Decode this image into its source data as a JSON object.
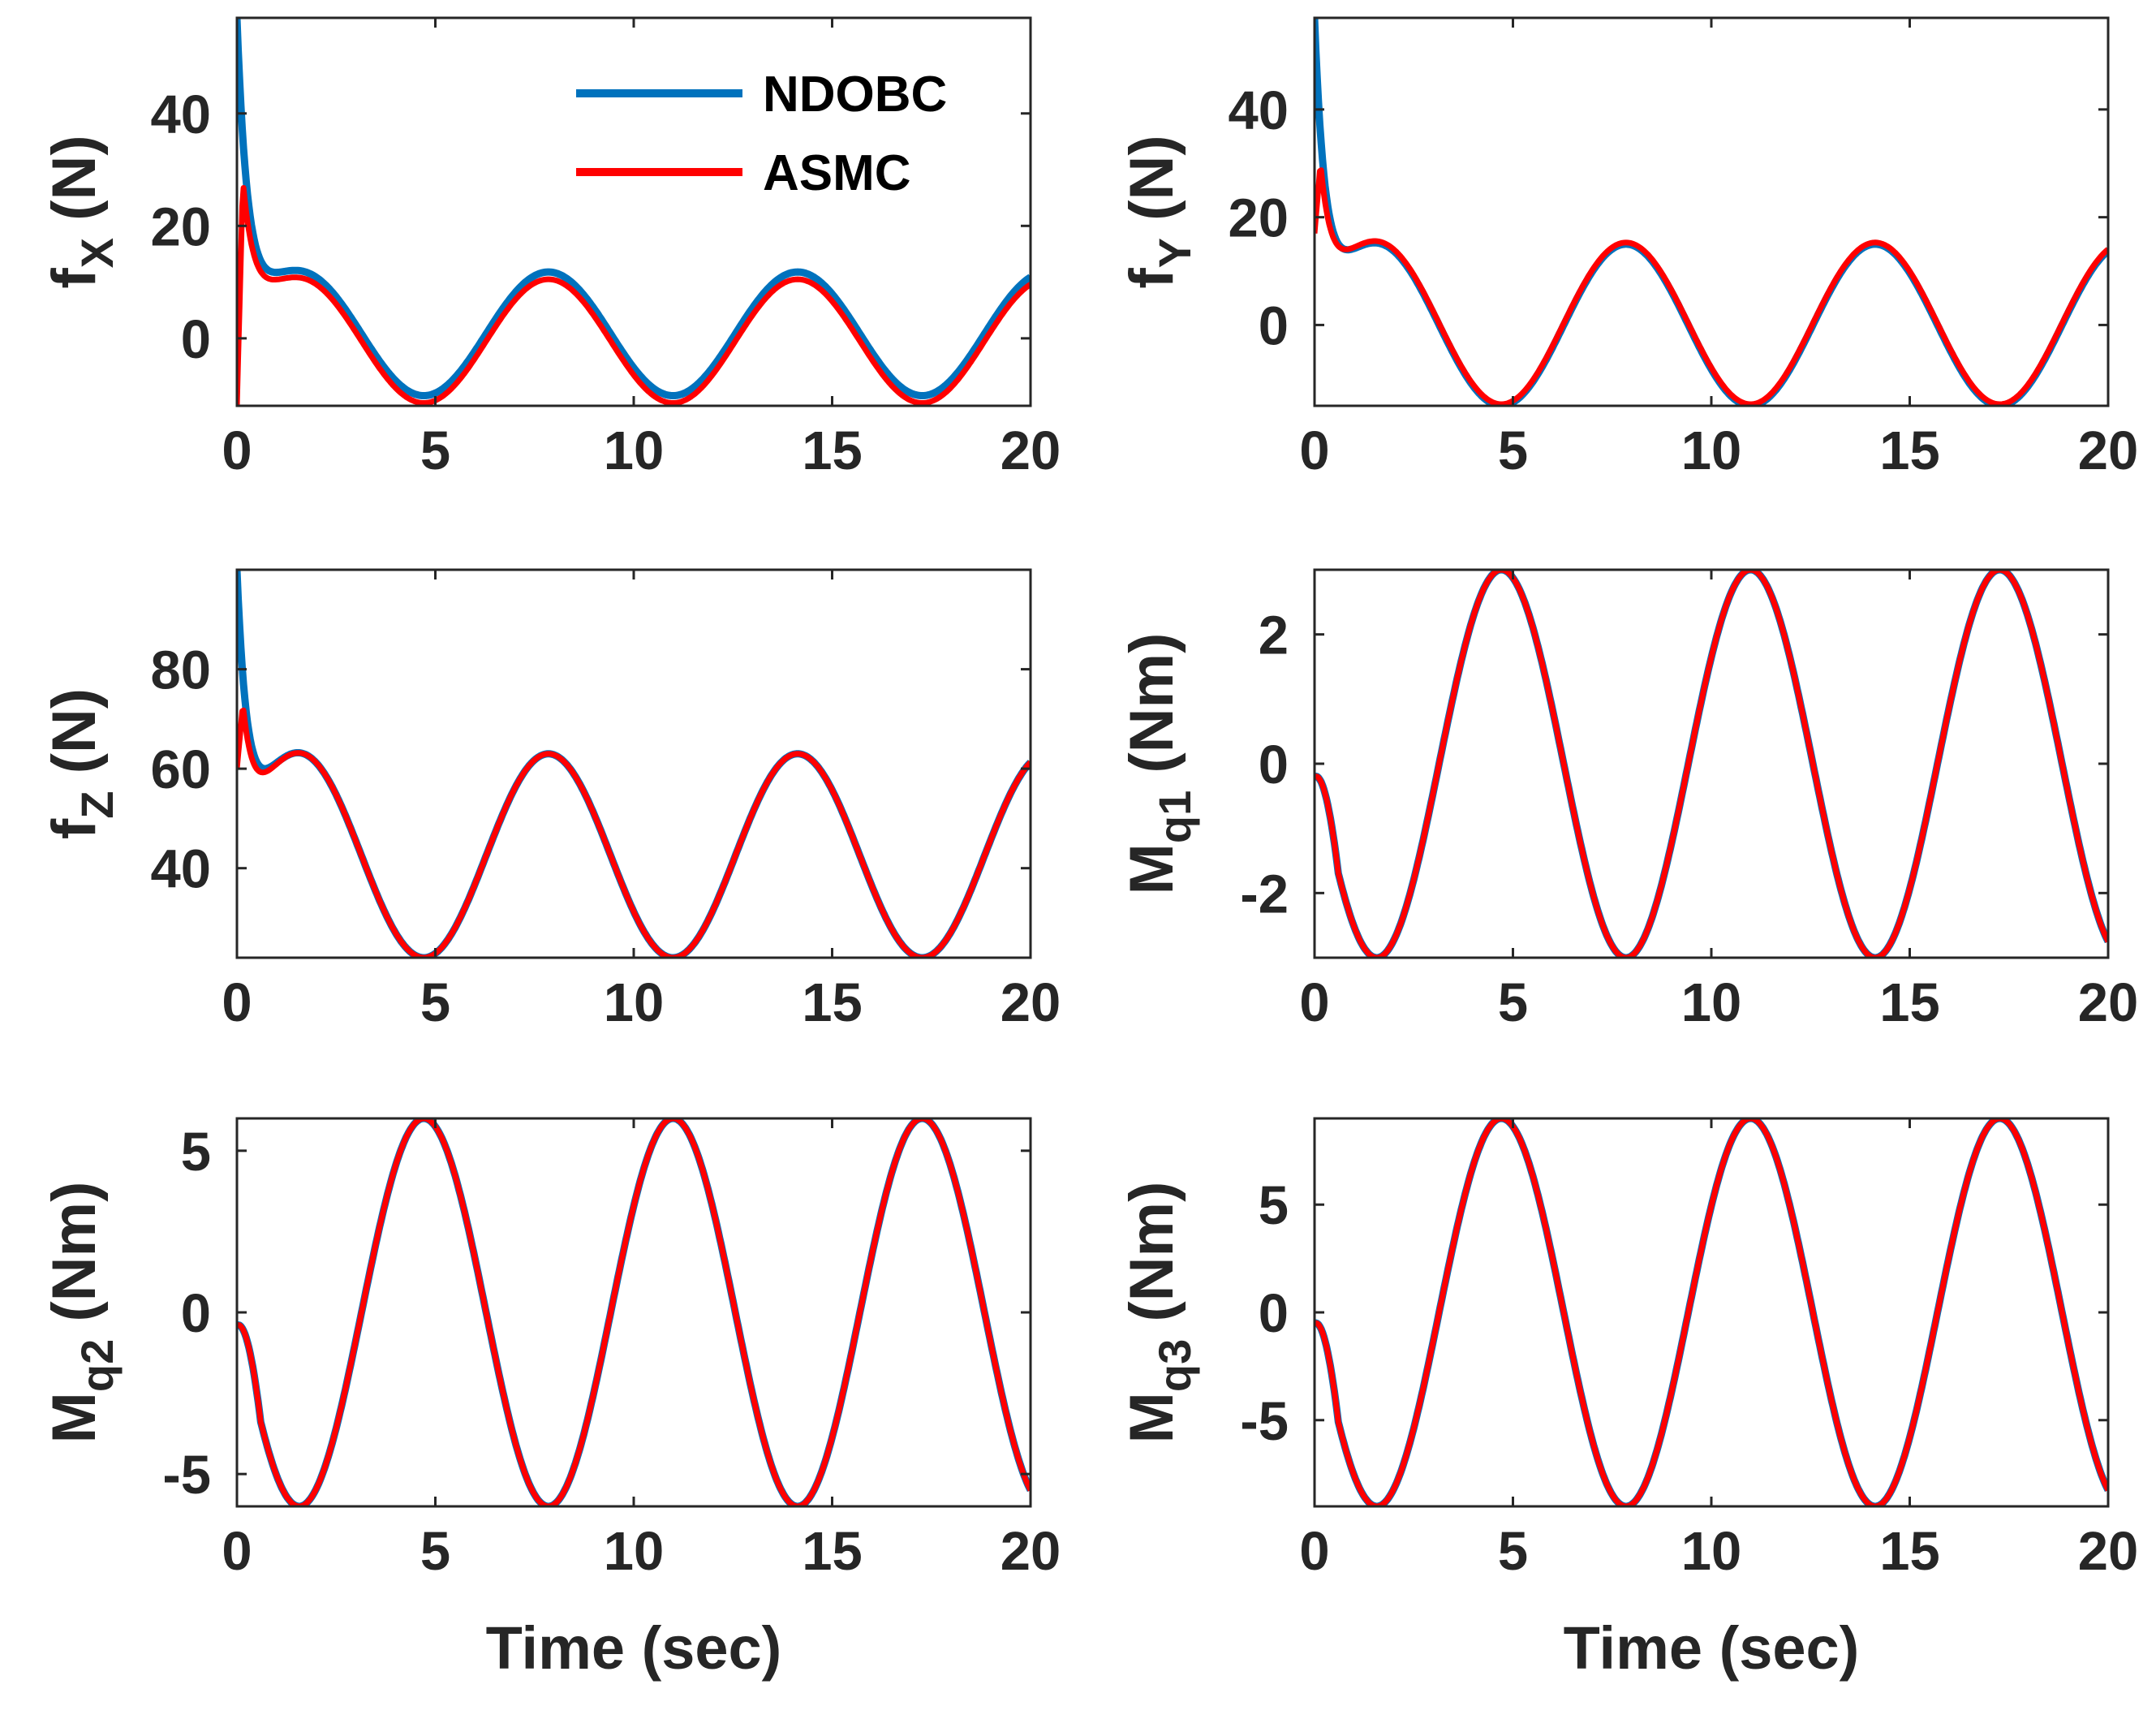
{
  "figure": {
    "legend": [
      {
        "name": "NDOBC",
        "color": "#0072BD"
      },
      {
        "name": "ASMC",
        "color": "#FF0000"
      }
    ],
    "xlabel_bottom": "Time (sec)"
  },
  "chart_data": [
    {
      "id": "fx",
      "type": "line",
      "ylabel_main": "f",
      "ylabel_sub": "X",
      "ylabel_tail": " (N)",
      "xlim": [
        0,
        20
      ],
      "ylim": [
        -12,
        57
      ],
      "xticks": [
        "0",
        "5",
        "10",
        "15",
        "20"
      ],
      "xtick_values": [
        0,
        5,
        10,
        15,
        20
      ],
      "yticks": [
        "0",
        "20",
        "40"
      ],
      "ytick_values": [
        0,
        20,
        40
      ],
      "xlabel": "",
      "model": {
        "offset": 0,
        "amp": 11,
        "phase": 0.4,
        "period": 6.28
      },
      "series": [
        {
          "name": "NDOBC",
          "start": 57,
          "initial_decay": 0.3,
          "offset_shift": 0.8
        },
        {
          "name": "ASMC",
          "start": -12,
          "peak": 28,
          "peak_t": 0.15,
          "initial_decay": 0.35,
          "offset_shift": -0.5
        }
      ]
    },
    {
      "id": "fy",
      "type": "line",
      "ylabel_main": "f",
      "ylabel_sub": "Y",
      "ylabel_tail": " (N)",
      "xlim": [
        0,
        20
      ],
      "ylim": [
        -15,
        57
      ],
      "xticks": [
        "0",
        "5",
        "10",
        "15",
        "20"
      ],
      "xtick_values": [
        0,
        5,
        10,
        15,
        20
      ],
      "yticks": [
        "0",
        "20",
        "40"
      ],
      "ytick_values": [
        0,
        20,
        40
      ],
      "xlabel": "",
      "model": {
        "offset": 0,
        "amp": 15,
        "phase": 0.4,
        "period": 6.28
      },
      "series": [
        {
          "name": "NDOBC",
          "start": 57,
          "initial_decay": 0.3,
          "offset_shift": 0
        },
        {
          "name": "ASMC",
          "start": 17,
          "peak": 30,
          "peak_t": 0.15,
          "initial_decay": 0.35,
          "offset_shift": 0.3
        }
      ]
    },
    {
      "id": "fz",
      "type": "line",
      "ylabel_main": "f",
      "ylabel_sub": "Z",
      "ylabel_tail": " (N)",
      "xlim": [
        0,
        20
      ],
      "ylim": [
        22,
        100
      ],
      "xticks": [
        "0",
        "5",
        "10",
        "15",
        "20"
      ],
      "xtick_values": [
        0,
        5,
        10,
        15,
        20
      ],
      "yticks": [
        "40",
        "60",
        "80"
      ],
      "ytick_values": [
        40,
        60,
        80
      ],
      "xlabel": "",
      "model": {
        "offset": 42.5,
        "amp": 20.5,
        "phase": 0.4,
        "period": 6.28
      },
      "series": [
        {
          "name": "NDOBC",
          "start": 100,
          "initial_decay": 0.3,
          "offset_shift": 0
        },
        {
          "name": "ASMC",
          "start": 60,
          "peak": 73,
          "peak_t": 0.15,
          "initial_decay": 0.35,
          "offset_shift": 0
        }
      ]
    },
    {
      "id": "mq1",
      "type": "line",
      "ylabel_main": "M",
      "ylabel_sub": "q1",
      "ylabel_tail": " (Nm)",
      "xlim": [
        0,
        20
      ],
      "ylim": [
        -3,
        3
      ],
      "xticks": [
        "0",
        "5",
        "10",
        "15",
        "20"
      ],
      "xtick_values": [
        0,
        5,
        10,
        15,
        20
      ],
      "yticks": [
        "-2",
        "0",
        "2"
      ],
      "ytick_values": [
        -2,
        0,
        2
      ],
      "xlabel": "",
      "model": {
        "offset": 0,
        "amp": 3,
        "phase": 0,
        "period": 6.28,
        "sign": -1
      },
      "series": [
        {
          "name": "NDOBC",
          "start": -0.2
        },
        {
          "name": "ASMC",
          "start": -0.2
        }
      ]
    },
    {
      "id": "mq2",
      "type": "line",
      "ylabel_main": "M",
      "ylabel_sub": "q2",
      "ylabel_tail": " (Nm)",
      "xlim": [
        0,
        20
      ],
      "ylim": [
        -6,
        6
      ],
      "xticks": [
        "0",
        "5",
        "10",
        "15",
        "20"
      ],
      "xtick_values": [
        0,
        5,
        10,
        15,
        20
      ],
      "yticks": [
        "-5",
        "0",
        "5"
      ],
      "ytick_values": [
        -5,
        0,
        5
      ],
      "xlabel": "Time (sec)",
      "model": {
        "offset": 0,
        "amp": 6,
        "phase": 0,
        "period": 6.28,
        "sign": -1
      },
      "series": [
        {
          "name": "NDOBC",
          "start": -0.4
        },
        {
          "name": "ASMC",
          "start": -0.4
        }
      ]
    },
    {
      "id": "mq3",
      "type": "line",
      "ylabel_main": "M",
      "ylabel_sub": "q3",
      "ylabel_tail": " (Nm)",
      "xlim": [
        0,
        20
      ],
      "ylim": [
        -9,
        9
      ],
      "xticks": [
        "0",
        "5",
        "10",
        "15",
        "20"
      ],
      "xtick_values": [
        0,
        5,
        10,
        15,
        20
      ],
      "yticks": [
        "-5",
        "0",
        "5"
      ],
      "ytick_values": [
        -5,
        0,
        5
      ],
      "xlabel": "Time (sec)",
      "model": {
        "offset": 0,
        "amp": 9,
        "phase": 0,
        "period": 6.28,
        "sign": -1
      },
      "series": [
        {
          "name": "NDOBC",
          "start": -0.5
        },
        {
          "name": "ASMC",
          "start": -0.5
        }
      ]
    }
  ]
}
